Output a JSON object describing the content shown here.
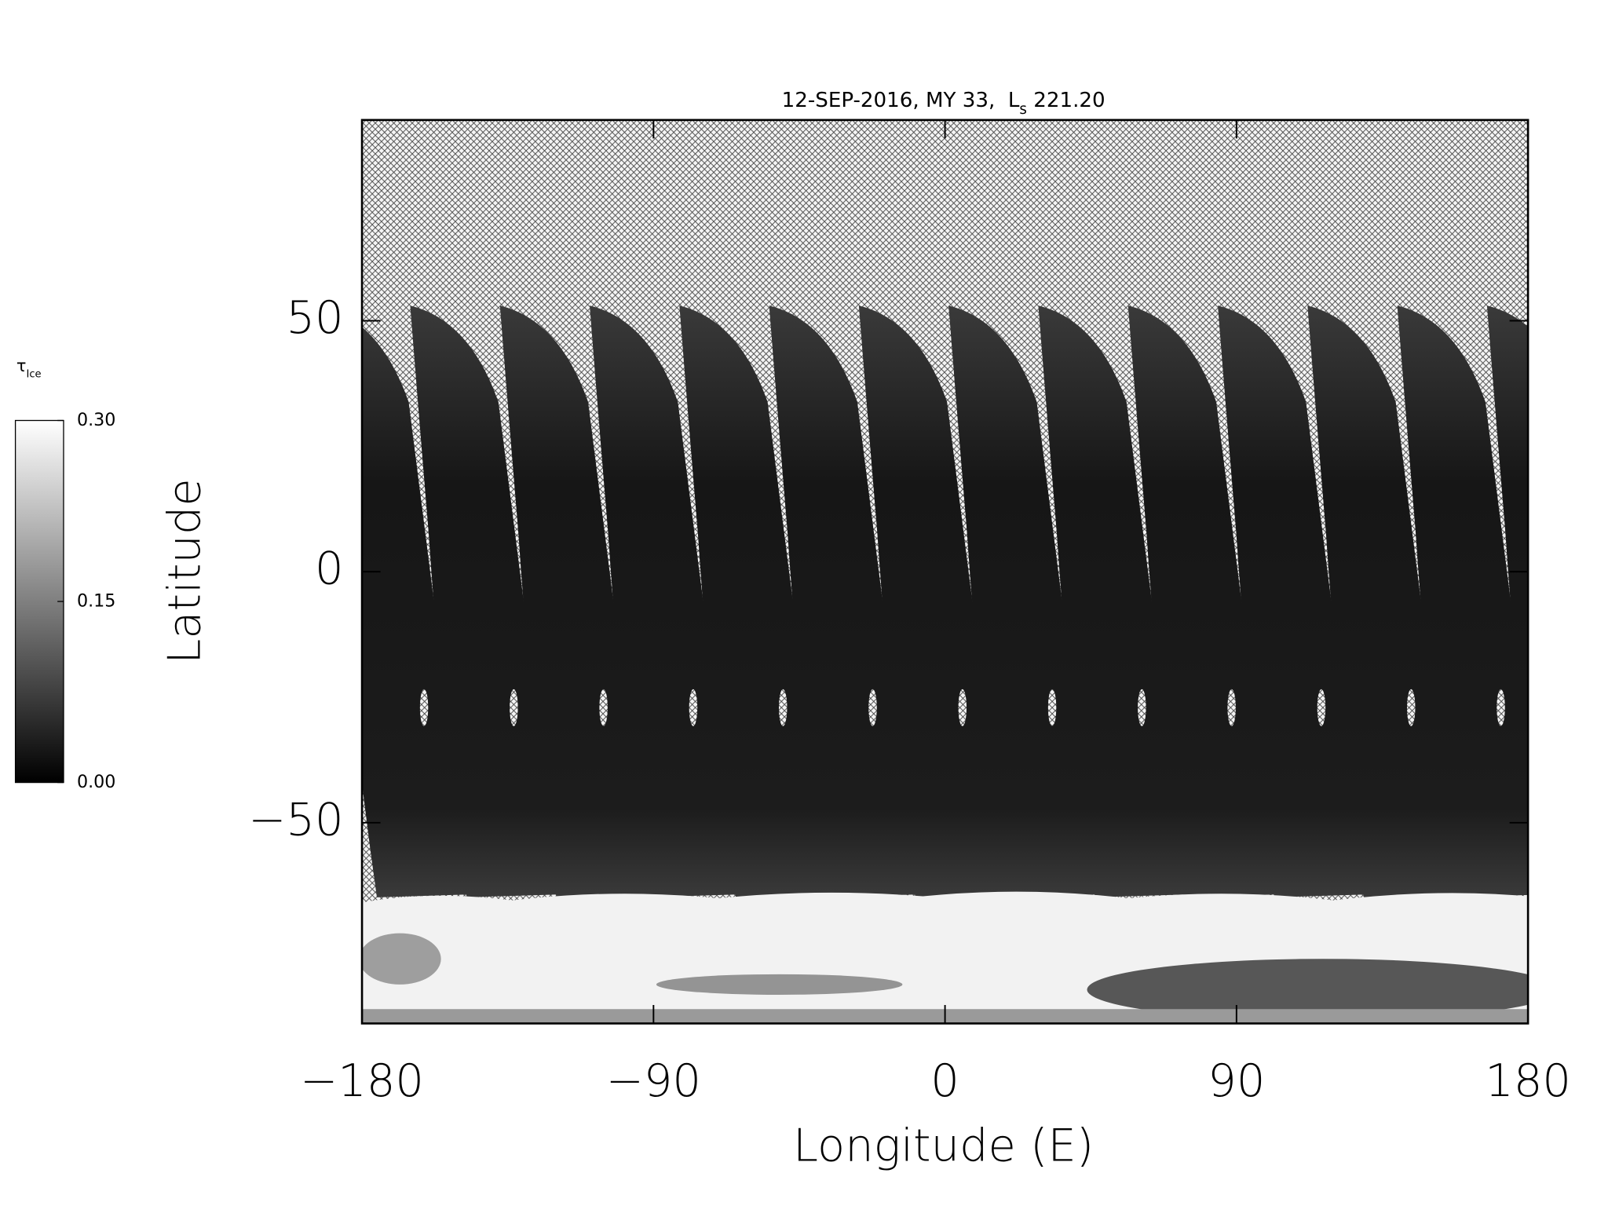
{
  "chart_data": {
    "type": "map",
    "title": {
      "prefix": "12-SEP-2016, MY 33,  L",
      "sub": "s",
      "suffix": " 221.20"
    },
    "x_label": "Longitude (E)",
    "y_label": "Latitude",
    "xlim": [
      -180,
      180
    ],
    "xticks": [
      {
        "value": -180,
        "label": "−180"
      },
      {
        "value": -90,
        "label": "−90"
      },
      0,
      90,
      180
    ],
    "ylim": [
      -90,
      90
    ],
    "yticks": [
      {
        "value": -50,
        "label": "−50"
      },
      0,
      50
    ],
    "colorbar": {
      "label": "τ",
      "label_sub": "Ice",
      "lim": [
        0,
        0.3
      ],
      "ticks": [
        {
          "value": 0,
          "label": "0.00"
        },
        {
          "value": 0.15,
          "label": "0.15"
        },
        {
          "value": 0.3,
          "label": "0.30"
        }
      ],
      "colors": [
        "#000000",
        "#ffffff"
      ]
    }
  }
}
